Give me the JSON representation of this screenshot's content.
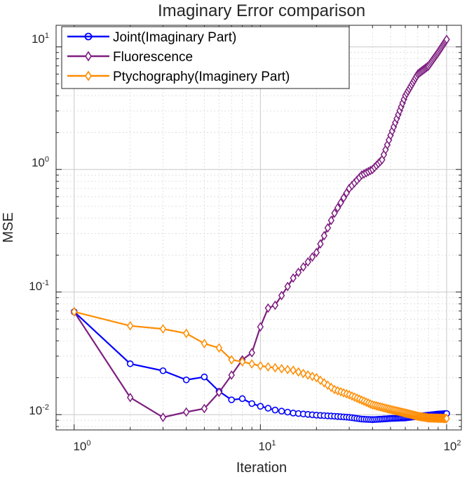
{
  "chart_data": {
    "type": "line",
    "title": "Imaginary Error comparison",
    "xlabel": "Iteration",
    "ylabel": "MSE",
    "xscale": "log",
    "yscale": "log",
    "xlim": [
      0.8,
      120
    ],
    "ylim": [
      0.0075,
      15
    ],
    "grid": true,
    "legend_position": "top-left",
    "x_ticks": [
      {
        "base": "10",
        "exp": "0",
        "value": 1
      },
      {
        "base": "10",
        "exp": "1",
        "value": 10
      },
      {
        "base": "10",
        "exp": "2",
        "value": 100
      }
    ],
    "y_ticks": [
      {
        "base": "10",
        "exp": "-2",
        "value": 0.01
      },
      {
        "base": "10",
        "exp": "-1",
        "value": 0.1
      },
      {
        "base": "10",
        "exp": "0",
        "value": 1
      },
      {
        "base": "10",
        "exp": "1",
        "value": 10
      }
    ],
    "series": [
      {
        "name": "Joint(Imaginary Part)",
        "color": "#0000ff",
        "marker": "circle",
        "anchors": [
          [
            1,
            0.069
          ],
          [
            2,
            0.026
          ],
          [
            3,
            0.0228
          ],
          [
            4,
            0.0192
          ],
          [
            5,
            0.0203
          ],
          [
            6,
            0.0155
          ],
          [
            7,
            0.0132
          ],
          [
            8,
            0.0135
          ],
          [
            9,
            0.0123
          ],
          [
            10,
            0.0117
          ],
          [
            12,
            0.0109
          ],
          [
            15,
            0.0103
          ],
          [
            20,
            0.0099
          ],
          [
            25,
            0.0097
          ],
          [
            30,
            0.0095
          ],
          [
            35,
            0.0092
          ],
          [
            40,
            0.0091
          ],
          [
            45,
            0.0092
          ],
          [
            50,
            0.0093
          ],
          [
            60,
            0.0094
          ],
          [
            70,
            0.0097
          ],
          [
            80,
            0.0099
          ],
          [
            90,
            0.0101
          ],
          [
            100,
            0.0102
          ]
        ]
      },
      {
        "name": "Fluorescence",
        "color": "#7e1e80",
        "marker": "diamond",
        "anchors": [
          [
            1,
            0.069
          ],
          [
            2,
            0.0138
          ],
          [
            3,
            0.0095
          ],
          [
            4,
            0.0105
          ],
          [
            5,
            0.0112
          ],
          [
            6,
            0.0152
          ],
          [
            7,
            0.021
          ],
          [
            8,
            0.028
          ],
          [
            9,
            0.032
          ],
          [
            10,
            0.052
          ],
          [
            11,
            0.074
          ],
          [
            12,
            0.078
          ],
          [
            15,
            0.13
          ],
          [
            20,
            0.21
          ],
          [
            25,
            0.44
          ],
          [
            30,
            0.7
          ],
          [
            35,
            0.9
          ],
          [
            40,
            1.0
          ],
          [
            45,
            1.2
          ],
          [
            50,
            1.9
          ],
          [
            60,
            4.0
          ],
          [
            70,
            6.0
          ],
          [
            80,
            7.0
          ],
          [
            90,
            9.0
          ],
          [
            100,
            11.5
          ]
        ]
      },
      {
        "name": "Ptychography(Imaginery Part)",
        "color": "#ff8c00",
        "marker": "diamond",
        "anchors": [
          [
            1,
            0.069
          ],
          [
            2,
            0.053
          ],
          [
            3,
            0.05
          ],
          [
            4,
            0.046
          ],
          [
            5,
            0.038
          ],
          [
            6,
            0.035
          ],
          [
            7,
            0.028
          ],
          [
            8,
            0.027
          ],
          [
            10,
            0.025
          ],
          [
            15,
            0.023
          ],
          [
            20,
            0.02
          ],
          [
            25,
            0.016
          ],
          [
            30,
            0.0145
          ],
          [
            40,
            0.012
          ],
          [
            50,
            0.011
          ],
          [
            60,
            0.0103
          ],
          [
            70,
            0.0097
          ],
          [
            80,
            0.0094
          ],
          [
            100,
            0.0093
          ]
        ]
      }
    ]
  }
}
